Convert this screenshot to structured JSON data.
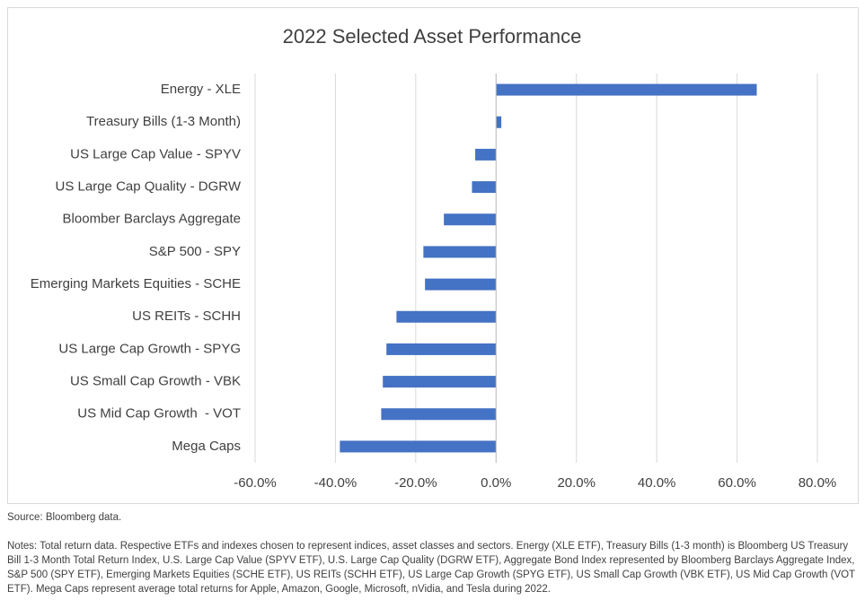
{
  "chart_data": {
    "type": "bar",
    "orientation": "horizontal",
    "title": "2022 Selected Asset Performance",
    "categories": [
      "Energy - XLE",
      "Treasury Bills (1-3 Month)",
      "US Large Cap Value - SPYV",
      "US Large Cap Quality - DGRW",
      "Bloomber Barclays Aggregate",
      "S&P 500 - SPY",
      "Emerging Markets Equities - SCHE",
      "US REITs - SCHH",
      "US Large Cap Growth - SPYG",
      "US Small Cap Growth - VBK",
      "US Mid Cap Growth  - VOT",
      "Mega Caps"
    ],
    "values": [
      64.9,
      1.3,
      -5.2,
      -6.0,
      -13.0,
      -18.1,
      -17.7,
      -24.8,
      -27.3,
      -28.2,
      -28.6,
      -38.9
    ],
    "color": "#4472c4",
    "xlim": [
      -60,
      80
    ],
    "xticks": [
      {
        "value": -60,
        "label": "-60.0%"
      },
      {
        "value": -40,
        "label": "-40.0%"
      },
      {
        "value": -20,
        "label": "-20.0%"
      },
      {
        "value": 0,
        "label": "0.0%"
      },
      {
        "value": 20,
        "label": "20.0%"
      },
      {
        "value": 40,
        "label": "40.0%"
      },
      {
        "value": 60,
        "label": "60.0%"
      },
      {
        "value": 80,
        "label": "80.0%"
      }
    ],
    "grid": true
  },
  "source": "Source: Bloomberg data.",
  "notes": "Notes: Total return data. Respective ETFs and indexes chosen to represent indices, asset classes and sectors. Energy (XLE ETF), Treasury Bills (1-3 month) is Bloomberg US Treasury Bill 1-3 Month Total Return Index, U.S. Large Cap Value (SPYV ETF), U.S. Large Cap Quality (DGRW ETF), Aggregate Bond Index represented by Bloomberg Barclays Aggregate Index, S&P 500 (SPY ETF), Emerging Markets Equities (SCHE ETF), US REITs (SCHH ETF), US Large Cap Growth (SPYG ETF), US Small Cap Growth (VBK ETF), US Mid Cap Growth (VOT ETF). Mega Caps represent average total returns for Apple, Amazon, Google, Microsoft, nVidia, and Tesla during 2022."
}
